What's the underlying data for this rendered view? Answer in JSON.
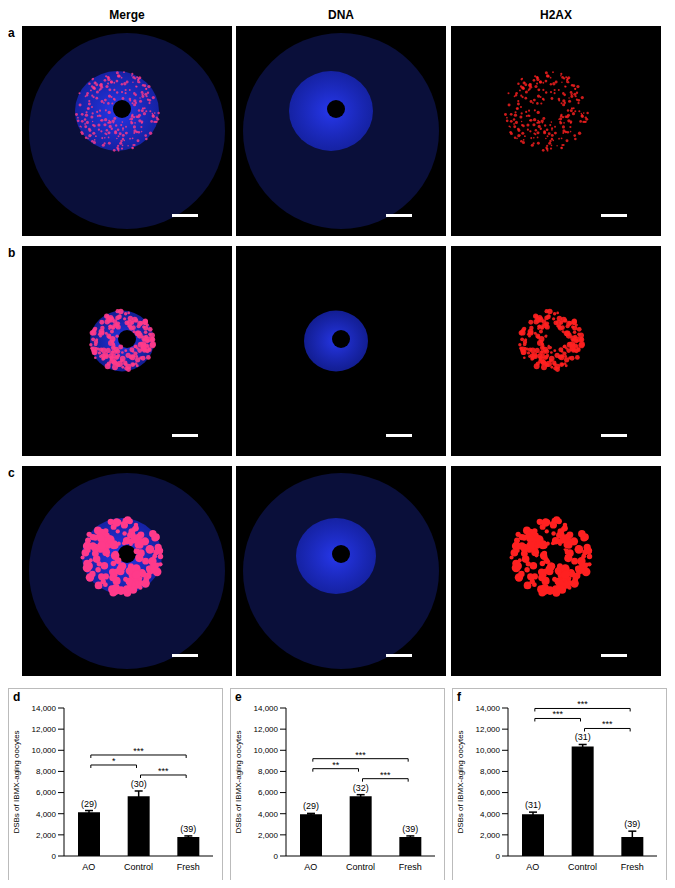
{
  "figure": {
    "column_titles": [
      "Merge",
      "DNA",
      "H2AX"
    ],
    "row_labels": [
      "a",
      "b",
      "c"
    ]
  },
  "chart_data": [
    {
      "title": "d",
      "type": "bar",
      "y_label": "DSBs of IBMX-aging oocytes",
      "categories": [
        "AO",
        "Control",
        "Fresh"
      ],
      "values": [
        4150,
        5650,
        1800
      ],
      "errors": [
        150,
        500,
        100
      ],
      "n_labels": [
        "(29)",
        "(30)",
        "(39)"
      ],
      "significance": [
        {
          "from": "Control",
          "to": "Fresh",
          "label": "***"
        },
        {
          "from": "AO",
          "to": "Control",
          "label": "*"
        },
        {
          "from": "AO",
          "to": "Fresh",
          "label": "***"
        }
      ],
      "color": "#000000",
      "ylim": [
        0,
        14000
      ],
      "yticks": [
        0,
        {
          "value": 2000,
          "label": "2,000"
        },
        {
          "value": 4000,
          "label": "4,000"
        },
        {
          "value": 6000,
          "label": "6,000"
        },
        {
          "value": 8000,
          "label": "8,000"
        },
        {
          "value": 10000,
          "label": "10,000"
        },
        {
          "value": 12000,
          "label": "12,000"
        },
        {
          "value": 14000,
          "label": "14,000"
        }
      ]
    },
    {
      "title": "e",
      "type": "bar",
      "y_label": "DSBs of IBMX-aging oocytes",
      "categories": [
        "AO",
        "Control",
        "Fresh"
      ],
      "values": [
        3950,
        5650,
        1800
      ],
      "errors": [
        80,
        150,
        100
      ],
      "n_labels": [
        "(29)",
        "(32)",
        "(39)"
      ],
      "significance": [
        {
          "from": "Control",
          "to": "Fresh",
          "label": "***"
        },
        {
          "from": "AO",
          "to": "Control",
          "label": "**"
        },
        {
          "from": "AO",
          "to": "Fresh",
          "label": "***"
        }
      ],
      "color": "#000000",
      "ylim": [
        0,
        14000
      ],
      "yticks": [
        0,
        {
          "value": 2000,
          "label": "2,000"
        },
        {
          "value": 4000,
          "label": "4,000"
        },
        {
          "value": 6000,
          "label": "6,000"
        },
        {
          "value": 8000,
          "label": "8,000"
        },
        {
          "value": 10000,
          "label": "10,000"
        },
        {
          "value": 12000,
          "label": "12,000"
        },
        {
          "value": 14000,
          "label": "14,000"
        }
      ]
    },
    {
      "title": "f",
      "type": "bar",
      "y_label": "DSBs of IBMX-aging oocytes",
      "categories": [
        "AO",
        "Control",
        "Fresh"
      ],
      "values": [
        3950,
        10350,
        1800
      ],
      "errors": [
        200,
        200,
        550
      ],
      "n_labels": [
        "(31)",
        "(31)",
        "(39)"
      ],
      "significance": [
        {
          "from": "Control",
          "to": "Fresh",
          "label": "***"
        },
        {
          "from": "AO",
          "to": "Control",
          "label": "***"
        },
        {
          "from": "AO",
          "to": "Fresh",
          "label": "***"
        }
      ],
      "color": "#000000",
      "ylim": [
        0,
        14000
      ],
      "yticks": [
        0,
        {
          "value": 2000,
          "label": "2,000"
        },
        {
          "value": 4000,
          "label": "4,000"
        },
        {
          "value": 6000,
          "label": "6,000"
        },
        {
          "value": 8000,
          "label": "8,000"
        },
        {
          "value": 10000,
          "label": "10,000"
        },
        {
          "value": 12000,
          "label": "12,000"
        },
        {
          "value": 14000,
          "label": "14,000"
        }
      ]
    }
  ]
}
